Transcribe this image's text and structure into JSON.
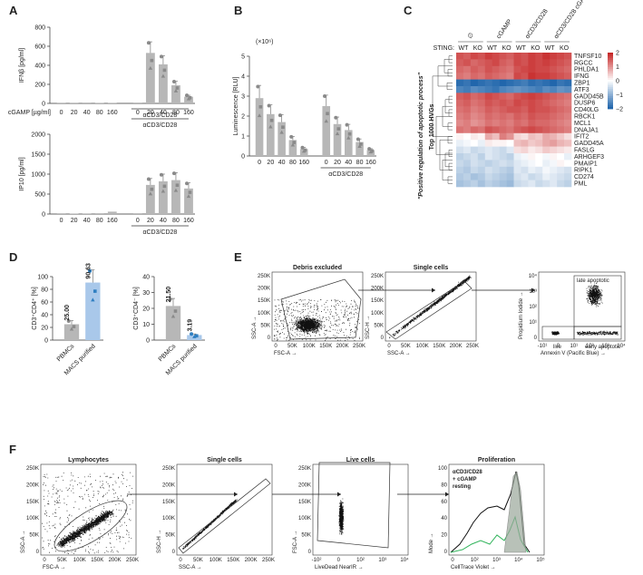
{
  "panel_labels": {
    "A": "A",
    "B": "B",
    "C": "C",
    "D": "D",
    "E": "E",
    "F": "F"
  },
  "colors": {
    "bar": "#b7b7b7",
    "dot": "#8a8a8a",
    "macs": "#a9c8ea",
    "macs_dot": "#2f7fc1",
    "heat_high": "#c62828",
    "heat_low": "#2166ac",
    "green": "#2fb35a"
  },
  "chart_data": [
    {
      "id": "A1",
      "type": "bar",
      "ylabel": "IFNβ [pg/ml]",
      "ylim": [
        0,
        800
      ],
      "yticks": [
        0,
        200,
        400,
        600,
        800
      ],
      "xrow_label": "cGAMP [µg/ml]",
      "categories": [
        "0",
        "20",
        "40",
        "80",
        "160",
        "0",
        "20",
        "40",
        "80",
        "160"
      ],
      "values": [
        3,
        3,
        8,
        4,
        6,
        8,
        530,
        410,
        190,
        70
      ],
      "group_label": "αCD3/CD28"
    },
    {
      "id": "A2",
      "type": "bar",
      "ylabel": "IP10 [pg/ml]",
      "ylim": [
        0,
        2000
      ],
      "yticks": [
        0,
        500,
        1000,
        1500,
        2000
      ],
      "categories": [
        "0",
        "20",
        "40",
        "80",
        "160",
        "0",
        "20",
        "40",
        "80",
        "160"
      ],
      "values": [
        5,
        10,
        15,
        20,
        60,
        20,
        730,
        820,
        850,
        640
      ],
      "group_label": "αCD3/CD28"
    },
    {
      "id": "B",
      "type": "bar",
      "ylabel": "Luminescence [RLU]",
      "scale_label": "(×10⁶)",
      "ylim": [
        0,
        5
      ],
      "yticks": [
        0,
        1,
        2,
        3,
        4,
        5
      ],
      "categories": [
        "0",
        "20",
        "40",
        "80",
        "160",
        "0",
        "20",
        "40",
        "80",
        "160"
      ],
      "values": [
        2.9,
        2.1,
        1.7,
        0.8,
        0.35,
        2.5,
        1.6,
        1.3,
        0.7,
        0.3
      ],
      "group_label": "αCD3/CD28"
    },
    {
      "id": "C",
      "type": "heatmap",
      "title": "Top 1000 HVGs",
      "side_label": "\"Positive regulation of apoptotic process\"",
      "sting_label": "STING:",
      "col_groups": [
        "∅",
        "cGAMP",
        "αCD3/CD28",
        "αCD3/CD28 cGAMP"
      ],
      "col_labels": [
        "WT",
        "KO",
        "WT",
        "KO",
        "WT",
        "KO",
        "WT",
        "KO"
      ],
      "genes": [
        "TNFSF10",
        "RGCC",
        "PHLDA1",
        "IFNG",
        "ZBP1",
        "ATF3",
        "GADD45B",
        "DUSP6",
        "CD40LG",
        "RBCK1",
        "MCL1",
        "DNAJA1",
        "IFIT2",
        "GADD45A",
        "FASLG",
        "ARHGEF3",
        "PMAIP1",
        "RIPK1",
        "CD274",
        "PML"
      ],
      "colorbar_ticks": [
        "2",
        "1",
        "0",
        "−1",
        "−2"
      ],
      "row_levels": [
        [
          1.6,
          1.5,
          1.7,
          1.6,
          1.8,
          1.7,
          1.6,
          1.5,
          1.7,
          1.6,
          1.8,
          1.7,
          1.9,
          1.8,
          1.7,
          1.6
        ],
        [
          1.5,
          1.6,
          1.4,
          1.5,
          1.6,
          1.7,
          1.5,
          1.4,
          1.7,
          1.6,
          1.8,
          1.7,
          1.8,
          1.7,
          1.6,
          1.5
        ],
        [
          1.4,
          1.3,
          1.5,
          1.4,
          1.6,
          1.5,
          1.4,
          1.3,
          1.6,
          1.7,
          1.8,
          1.7,
          1.7,
          1.6,
          1.5,
          1.4
        ],
        [
          1.3,
          1.2,
          1.4,
          1.3,
          1.5,
          1.4,
          1.3,
          1.2,
          1.7,
          1.6,
          1.9,
          1.8,
          1.8,
          1.7,
          1.6,
          1.5
        ],
        [
          -1.9,
          -1.8,
          -2.0,
          -1.9,
          -1.8,
          -1.9,
          -2.0,
          -1.9,
          -1.8,
          -1.7,
          -1.9,
          -1.8,
          -1.9,
          -2.0,
          -1.8,
          -1.9
        ],
        [
          -1.6,
          -1.7,
          -1.5,
          -1.6,
          -1.7,
          -1.8,
          -1.6,
          -1.5,
          -1.4,
          -1.5,
          -1.6,
          -1.7,
          -1.5,
          -1.6,
          -1.4,
          -1.5
        ],
        [
          1.5,
          1.6,
          1.4,
          1.5,
          1.7,
          1.6,
          1.5,
          1.4,
          1.6,
          1.7,
          1.8,
          1.7,
          1.6,
          1.5,
          1.4,
          1.3
        ],
        [
          1.4,
          1.5,
          1.3,
          1.4,
          1.6,
          1.5,
          1.6,
          1.5,
          1.7,
          1.6,
          1.7,
          1.6,
          1.5,
          1.4,
          1.3,
          1.2
        ],
        [
          1.3,
          1.4,
          1.2,
          1.3,
          1.5,
          1.4,
          1.5,
          1.6,
          1.6,
          1.5,
          1.7,
          1.6,
          1.6,
          1.5,
          1.4,
          1.3
        ],
        [
          1.2,
          1.3,
          1.1,
          1.2,
          1.4,
          1.3,
          1.4,
          1.3,
          1.5,
          1.4,
          1.6,
          1.5,
          1.5,
          1.4,
          1.3,
          1.2
        ],
        [
          1.1,
          1.2,
          1.0,
          1.1,
          1.3,
          1.2,
          1.3,
          1.2,
          1.4,
          1.3,
          1.5,
          1.4,
          1.4,
          1.3,
          1.2,
          1.1
        ],
        [
          1.3,
          1.2,
          1.4,
          1.3,
          1.6,
          1.5,
          1.4,
          1.3,
          1.5,
          1.6,
          1.7,
          1.6,
          1.5,
          1.4,
          1.3,
          1.2
        ],
        [
          0.1,
          0.0,
          0.2,
          0.1,
          0.8,
          0.6,
          1.2,
          1.0,
          0.4,
          0.3,
          0.6,
          0.5,
          0.8,
          0.7,
          0.5,
          0.3
        ],
        [
          -0.2,
          -0.1,
          0.0,
          -0.2,
          0.2,
          0.1,
          0.1,
          0.0,
          0.6,
          0.7,
          0.5,
          0.6,
          0.8,
          0.9,
          0.7,
          0.6
        ],
        [
          -0.4,
          -0.3,
          -0.5,
          -0.4,
          -0.3,
          -0.4,
          -0.5,
          -0.3,
          0.3,
          0.4,
          0.2,
          0.3,
          0.5,
          0.4,
          0.3,
          0.2
        ],
        [
          -0.6,
          -0.5,
          -0.4,
          -0.6,
          -0.3,
          -0.4,
          -0.5,
          -0.6,
          -0.2,
          -0.1,
          0.1,
          0.0,
          -0.1,
          0.1,
          0.0,
          -0.2
        ],
        [
          -0.5,
          -0.6,
          -0.4,
          -0.5,
          -0.6,
          -0.5,
          -0.4,
          -0.5,
          -0.3,
          -0.2,
          -0.1,
          0.0,
          -0.2,
          -0.1,
          0.1,
          0.0
        ],
        [
          -0.6,
          -0.7,
          -0.5,
          -0.6,
          -0.4,
          -0.5,
          -0.6,
          -0.7,
          -0.3,
          -0.4,
          -0.2,
          -0.3,
          -0.1,
          -0.2,
          -0.3,
          -0.4
        ],
        [
          -0.7,
          -0.6,
          -0.8,
          -0.7,
          -0.5,
          -0.6,
          -0.7,
          -0.8,
          -0.4,
          -0.3,
          -0.5,
          -0.4,
          -0.2,
          -0.3,
          -0.4,
          -0.5
        ],
        [
          -0.8,
          -0.7,
          -0.6,
          -0.8,
          -0.6,
          -0.7,
          -0.8,
          -0.9,
          -0.5,
          -0.4,
          -0.3,
          -0.5,
          -0.4,
          -0.3,
          -0.5,
          -0.6
        ]
      ]
    },
    {
      "id": "D1",
      "type": "bar",
      "ylabel": "CD3⁺CD4⁺ [%]",
      "ylim": [
        0,
        100
      ],
      "yticks": [
        0,
        20,
        40,
        60,
        80,
        100
      ],
      "categories": [
        "PBMCs",
        "MACS purified"
      ],
      "values": [
        25.0,
        90.63
      ],
      "value_labels": [
        "25.00",
        "90.63"
      ]
    },
    {
      "id": "D2",
      "type": "bar",
      "ylabel": "CD3⁺CD4⁻ [%]",
      "ylim": [
        0,
        40
      ],
      "yticks": [
        0,
        10,
        20,
        30,
        40
      ],
      "categories": [
        "PBMCs",
        "MACS purified"
      ],
      "values": [
        21.5,
        3.19
      ],
      "value_labels": [
        "21.50",
        "3.19"
      ]
    },
    {
      "id": "E",
      "type": "scatter",
      "plots": [
        {
          "title": "Debris excluded",
          "xlabel": "FSC-A",
          "ylabel": "SSC-A",
          "xticks": [
            "0",
            "50K",
            "100K",
            "150K",
            "200K",
            "250K"
          ],
          "yticks": [
            "0",
            "50K",
            "100K",
            "150K",
            "200K",
            "250K"
          ]
        },
        {
          "title": "Single cells",
          "xlabel": "SSC-A",
          "ylabel": "SSC-H",
          "xticks": [
            "0",
            "50K",
            "100K",
            "150K",
            "200K",
            "250K"
          ],
          "yticks": [
            "0",
            "50K",
            "100K",
            "150K",
            "200K",
            "250K"
          ]
        },
        {
          "title": "",
          "xlabel": "Annexin V (Pacific Blue)",
          "ylabel": "Propidium Iodide",
          "xticks": [
            "-10¹",
            "0",
            "10¹",
            "10²",
            "10³",
            "10⁴"
          ],
          "yticks": [
            "0",
            "10¹",
            "10²",
            "10³",
            "10⁴"
          ],
          "gates": [
            "late apoptotic",
            "live",
            "early apoptotic"
          ]
        }
      ]
    },
    {
      "id": "F",
      "type": "scatter",
      "plots": [
        {
          "title": "Lymphocytes",
          "xlabel": "FSC-A",
          "ylabel": "SSC-A",
          "xticks": [
            "0",
            "50K",
            "100K",
            "150K",
            "200K",
            "250K"
          ],
          "yticks": [
            "0",
            "50K",
            "100K",
            "150K",
            "200K",
            "250K"
          ]
        },
        {
          "title": "Single cells",
          "xlabel": "SSC-A",
          "ylabel": "SSC-H",
          "xticks": [
            "0",
            "50K",
            "100K",
            "150K",
            "200K",
            "250K"
          ],
          "yticks": [
            "0",
            "50K",
            "100K",
            "150K",
            "200K",
            "250K"
          ]
        },
        {
          "title": "Live cells",
          "xlabel": "LiveDead NearIR",
          "ylabel": "FSC-A",
          "xticks": [
            "-10²",
            "0",
            "10²",
            "10³",
            "10⁴"
          ],
          "yticks": [
            "0",
            "50K",
            "100K",
            "150K",
            "200K",
            "250K"
          ]
        },
        {
          "title": "Proliferation",
          "xlabel": "CellTrace Violet",
          "ylabel": "Mode",
          "xticks": [
            "0",
            "10²",
            "10³",
            "10⁴",
            "10⁵"
          ],
          "yticks": [
            "0",
            "20",
            "40",
            "60",
            "80",
            "100"
          ],
          "legend": [
            "αCD3/CD28",
            "+ cGAMP",
            "resting"
          ]
        }
      ]
    }
  ]
}
